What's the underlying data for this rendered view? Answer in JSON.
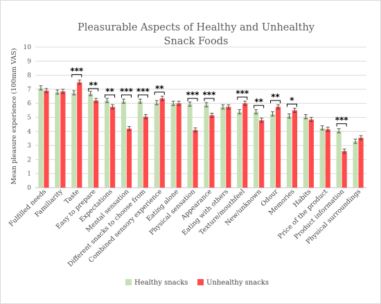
{
  "chart_data": {
    "type": "bar",
    "title": "Pleasurable Aspects of Healthy and Unhealthy Snack Foods",
    "ylabel": "Mean pleasure experience (100mm VAS)",
    "xlabel": "",
    "ylim": [
      0,
      10
    ],
    "yticks": [
      "0",
      "1",
      "2",
      "3",
      "4",
      "5",
      "6",
      "7",
      "8",
      "9",
      "10"
    ],
    "grid": true,
    "legend_position": "bottom",
    "categories": [
      "Fulfilled needs",
      "Familiarity",
      "Taste",
      "Easy to prepare",
      "Expectations",
      "Mental sensation",
      "Different snacks to choose from",
      "Combined sensory experience",
      "Eating alone",
      "Physical sensation",
      "Appearance",
      "Eating with others",
      "Texture/mouthfeel",
      "New/unknown",
      "Odour",
      "Memories",
      "Habits",
      "Price of the product",
      "Product information",
      "Physical surroundings"
    ],
    "series": [
      {
        "name": "Healthy snacks",
        "color": "#c5e0b4",
        "values": [
          7.1,
          6.8,
          6.75,
          6.7,
          6.2,
          6.15,
          6.15,
          6.05,
          6.0,
          5.95,
          5.9,
          5.75,
          5.4,
          5.4,
          5.25,
          5.1,
          5.05,
          4.25,
          4.05,
          3.3
        ],
        "errors": [
          0.15,
          0.15,
          0.15,
          0.15,
          0.15,
          0.15,
          0.15,
          0.15,
          0.15,
          0.15,
          0.15,
          0.15,
          0.15,
          0.15,
          0.15,
          0.15,
          0.15,
          0.15,
          0.15,
          0.15
        ]
      },
      {
        "name": "Unhealthy snacks",
        "color": "#ff4b4b",
        "values": [
          6.9,
          6.85,
          7.5,
          6.2,
          5.75,
          4.2,
          5.05,
          6.35,
          6.0,
          4.1,
          5.15,
          5.75,
          6.0,
          4.8,
          5.75,
          5.5,
          4.85,
          4.15,
          2.6,
          3.55
        ],
        "errors": [
          0.15,
          0.15,
          0.15,
          0.15,
          0.15,
          0.15,
          0.15,
          0.15,
          0.15,
          0.15,
          0.15,
          0.15,
          0.15,
          0.15,
          0.15,
          0.15,
          0.15,
          0.15,
          0.15,
          0.15
        ]
      }
    ],
    "annotations": [
      {
        "category": "Taste",
        "text": "***",
        "y": 8.05
      },
      {
        "category": "Easy to prepare",
        "text": "**",
        "y": 7.05
      },
      {
        "category": "Expectations",
        "text": "**",
        "y": 6.6
      },
      {
        "category": "Mental sensation",
        "text": "***",
        "y": 6.6
      },
      {
        "category": "Different snacks to choose from",
        "text": "***",
        "y": 6.6
      },
      {
        "category": "Combined sensory experience",
        "text": "**",
        "y": 6.8
      },
      {
        "category": "Physical sensation",
        "text": "***",
        "y": 6.35
      },
      {
        "category": "Appearance",
        "text": "***",
        "y": 6.35
      },
      {
        "category": "Texture/mouthfeel",
        "text": "***",
        "y": 6.45
      },
      {
        "category": "New/unknown",
        "text": "**",
        "y": 5.85
      },
      {
        "category": "Odour",
        "text": "**",
        "y": 6.2
      },
      {
        "category": "Memories",
        "text": "*",
        "y": 5.95
      },
      {
        "category": "Product information",
        "text": "***",
        "y": 4.55
      }
    ]
  }
}
